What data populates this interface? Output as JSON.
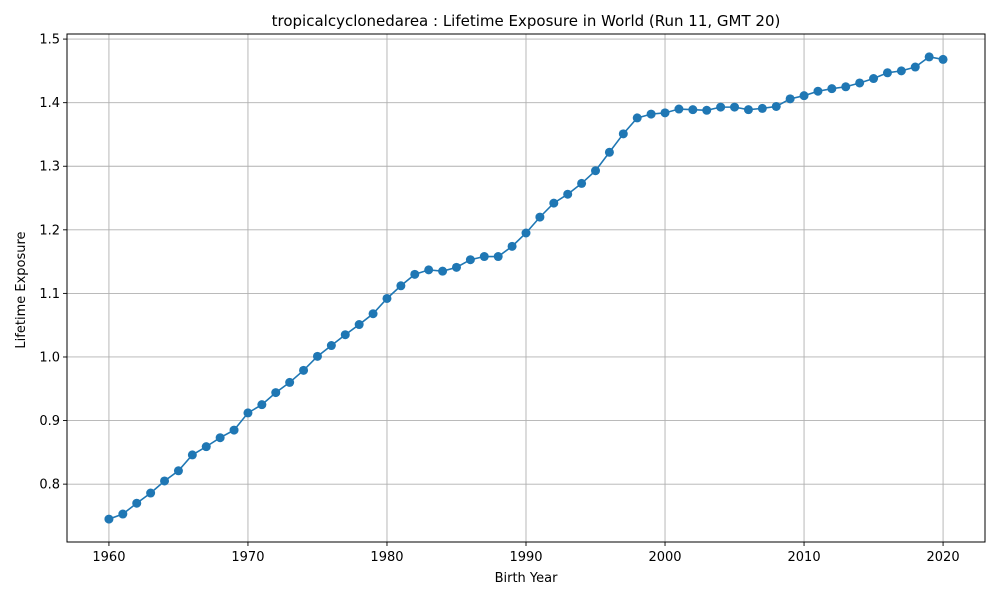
{
  "chart_data": {
    "type": "line",
    "title": "tropicalcyclonedarea : Lifetime Exposure in World (Run 11, GMT 20)",
    "xlabel": "Birth Year",
    "ylabel": "Lifetime Exposure",
    "xlim": [
      1956.984,
      2023.016
    ],
    "ylim": [
      0.709,
      1.508
    ],
    "xticks": [
      1960,
      1970,
      1980,
      1990,
      2000,
      2010,
      2020
    ],
    "yticks": [
      0.8,
      0.9,
      1.0,
      1.1,
      1.2,
      1.3,
      1.4,
      1.5
    ],
    "xtick_labels": [
      "1960",
      "1970",
      "1980",
      "1990",
      "2000",
      "2010",
      "2020"
    ],
    "ytick_labels": [
      "0.8",
      "0.9",
      "1.0",
      "1.1",
      "1.2",
      "1.3",
      "1.4",
      "1.5"
    ],
    "grid": true,
    "color": "#1f77b4",
    "series": [
      {
        "x": [
          1960,
          1961,
          1962,
          1963,
          1964,
          1965,
          1966,
          1967,
          1968,
          1969,
          1970,
          1971,
          1972,
          1973,
          1974,
          1975,
          1976,
          1977,
          1978,
          1979,
          1980,
          1981,
          1982,
          1983,
          1984,
          1985,
          1986,
          1987,
          1988,
          1989,
          1990,
          1991,
          1992,
          1993,
          1994,
          1995,
          1996,
          1997,
          1998,
          1999,
          2000,
          2001,
          2002,
          2003,
          2004,
          2005,
          2006,
          2007,
          2008,
          2009,
          2010,
          2011,
          2012,
          2013,
          2014,
          2015,
          2016,
          2017,
          2018,
          2019,
          2020
        ],
        "values": [
          0.745,
          0.753,
          0.77,
          0.786,
          0.805,
          0.821,
          0.846,
          0.859,
          0.873,
          0.885,
          0.912,
          0.925,
          0.944,
          0.96,
          0.979,
          1.001,
          1.018,
          1.035,
          1.051,
          1.068,
          1.092,
          1.112,
          1.13,
          1.137,
          1.135,
          1.141,
          1.153,
          1.158,
          1.158,
          1.174,
          1.195,
          1.22,
          1.242,
          1.256,
          1.273,
          1.293,
          1.322,
          1.351,
          1.376,
          1.382,
          1.384,
          1.39,
          1.389,
          1.388,
          1.393,
          1.393,
          1.389,
          1.391,
          1.394,
          1.406,
          1.411,
          1.418,
          1.422,
          1.425,
          1.431,
          1.438,
          1.447,
          1.45,
          1.456,
          1.472,
          1.468
        ]
      }
    ]
  }
}
